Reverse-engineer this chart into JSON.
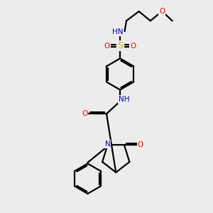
{
  "bg_color": "#ececec",
  "atom_colors": {
    "C": "#000000",
    "N": "#0000cc",
    "O": "#ff0000",
    "S": "#ccaa00",
    "H": "#4a8080"
  },
  "bond_color": "#000000",
  "line_width": 1.6,
  "figsize": [
    3.0,
    3.0
  ],
  "dpi": 100
}
